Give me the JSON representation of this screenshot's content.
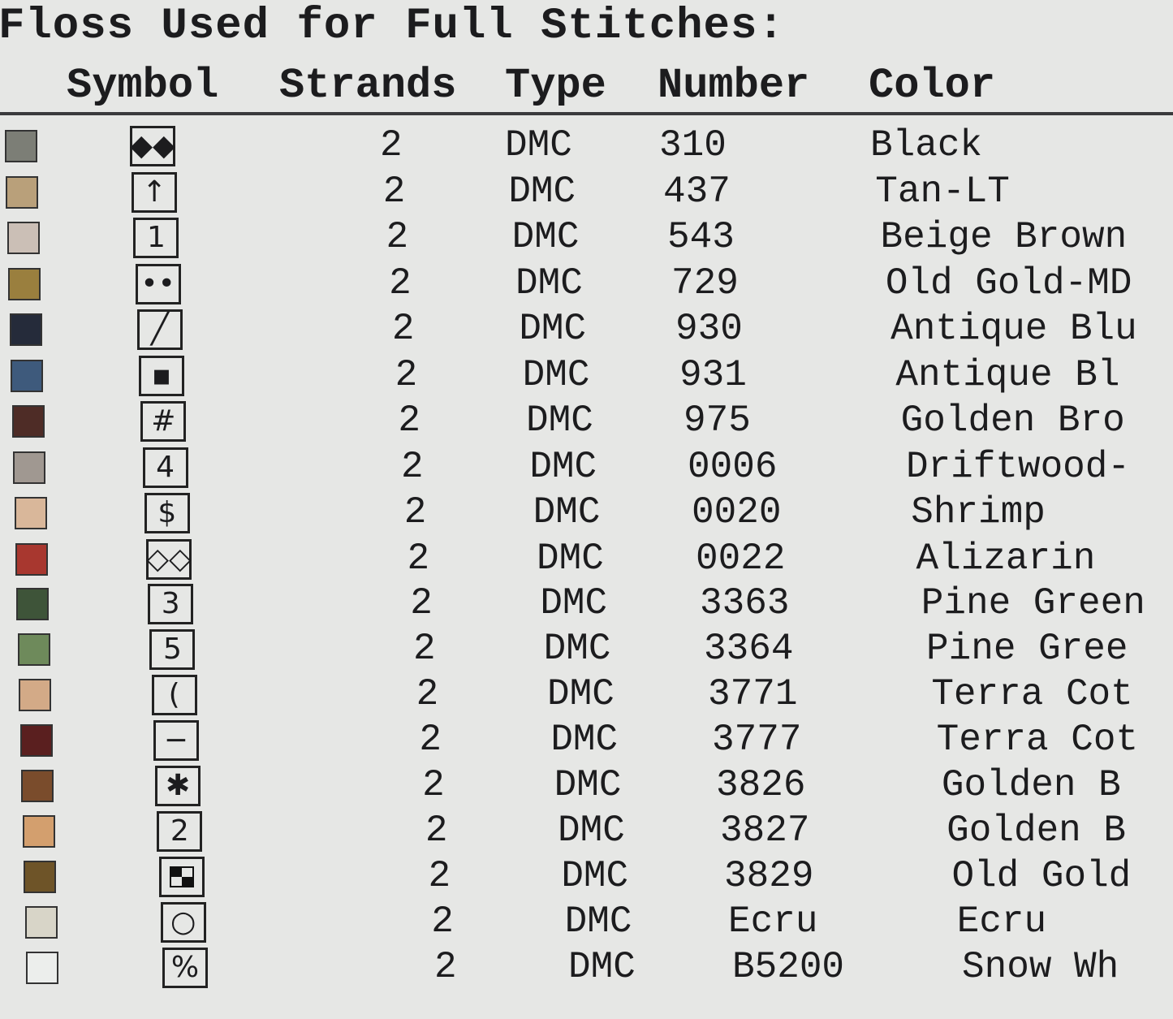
{
  "title": "Floss Used for Full Stitches:",
  "columns": [
    "Symbol",
    "Strands",
    "Type",
    "Number",
    "Color"
  ],
  "rows": [
    {
      "swatch": "#7c7e76",
      "symbol": "◆◆",
      "icon": "double-diamond-icon",
      "strands": "2",
      "type": "DMC",
      "number": "310",
      "color": "Black"
    },
    {
      "swatch": "#b9a07a",
      "symbol": "↑",
      "icon": "up-arrow-icon",
      "strands": "2",
      "type": "DMC",
      "number": "437",
      "color": "Tan-LT"
    },
    {
      "swatch": "#cbbfb6",
      "symbol": "1",
      "icon": "digit-one-icon",
      "strands": "2",
      "type": "DMC",
      "number": "543",
      "color": "Beige Brown"
    },
    {
      "swatch": "#9a7f3e",
      "symbol": "••",
      "icon": "two-dots-icon",
      "strands": "2",
      "type": "DMC",
      "number": "729",
      "color": "Old Gold-MD"
    },
    {
      "swatch": "#252b3a",
      "symbol": "╱",
      "icon": "slash-icon",
      "strands": "2",
      "type": "DMC",
      "number": "930",
      "color": "Antique Blu"
    },
    {
      "swatch": "#3e5a7c",
      "symbol": "▪",
      "icon": "small-square-icon",
      "strands": "2",
      "type": "DMC",
      "number": "931",
      "color": "Antique Bl"
    },
    {
      "swatch": "#4e2c26",
      "symbol": "#",
      "icon": "hash-icon",
      "strands": "2",
      "type": "DMC",
      "number": "975",
      "color": "Golden Bro"
    },
    {
      "swatch": "#a09891",
      "symbol": "4",
      "icon": "digit-four-icon",
      "strands": "2",
      "type": "DMC",
      "number": "0006",
      "color": "Driftwood-"
    },
    {
      "swatch": "#d9b79a",
      "symbol": "$",
      "icon": "dollar-icon",
      "strands": "2",
      "type": "DMC",
      "number": "0020",
      "color": "Shrimp"
    },
    {
      "swatch": "#a8372f",
      "symbol": "◇◇",
      "icon": "double-open-diamond-icon",
      "strands": "2",
      "type": "DMC",
      "number": "0022",
      "color": "Alizarin"
    },
    {
      "swatch": "#3e5439",
      "symbol": "3",
      "icon": "digit-three-icon",
      "strands": "2",
      "type": "DMC",
      "number": "3363",
      "color": "Pine Green"
    },
    {
      "swatch": "#6e8a5b",
      "symbol": "5",
      "icon": "digit-five-icon",
      "strands": "2",
      "type": "DMC",
      "number": "3364",
      "color": "Pine Gree"
    },
    {
      "swatch": "#d3aa87",
      "symbol": "(",
      "icon": "parenthesis-icon",
      "strands": "2",
      "type": "DMC",
      "number": "3771",
      "color": "Terra Cot"
    },
    {
      "swatch": "#5a1f1f",
      "symbol": "−",
      "icon": "dash-icon",
      "strands": "2",
      "type": "DMC",
      "number": "3777",
      "color": "Terra Cot"
    },
    {
      "swatch": "#7a4c2c",
      "symbol": "✱",
      "icon": "asterisk-icon",
      "strands": "2",
      "type": "DMC",
      "number": "3826",
      "color": "Golden B"
    },
    {
      "swatch": "#d39f6e",
      "symbol": "2",
      "icon": "digit-two-icon",
      "strands": "2",
      "type": "DMC",
      "number": "3827",
      "color": "Golden B"
    },
    {
      "swatch": "#6e5428",
      "symbol": "",
      "icon": "checker-icon",
      "strands": "2",
      "type": "DMC",
      "number": "3829",
      "color": "Old Gold"
    },
    {
      "swatch": "#d8d5c8",
      "symbol": "○",
      "icon": "circle-icon",
      "strands": "2",
      "type": "DMC",
      "number": "Ecru",
      "color": "Ecru"
    },
    {
      "swatch": "#eceeec",
      "symbol": "%",
      "icon": "percent-icon",
      "strands": "2",
      "type": "DMC",
      "number": "B5200",
      "color": "Snow Wh"
    }
  ]
}
